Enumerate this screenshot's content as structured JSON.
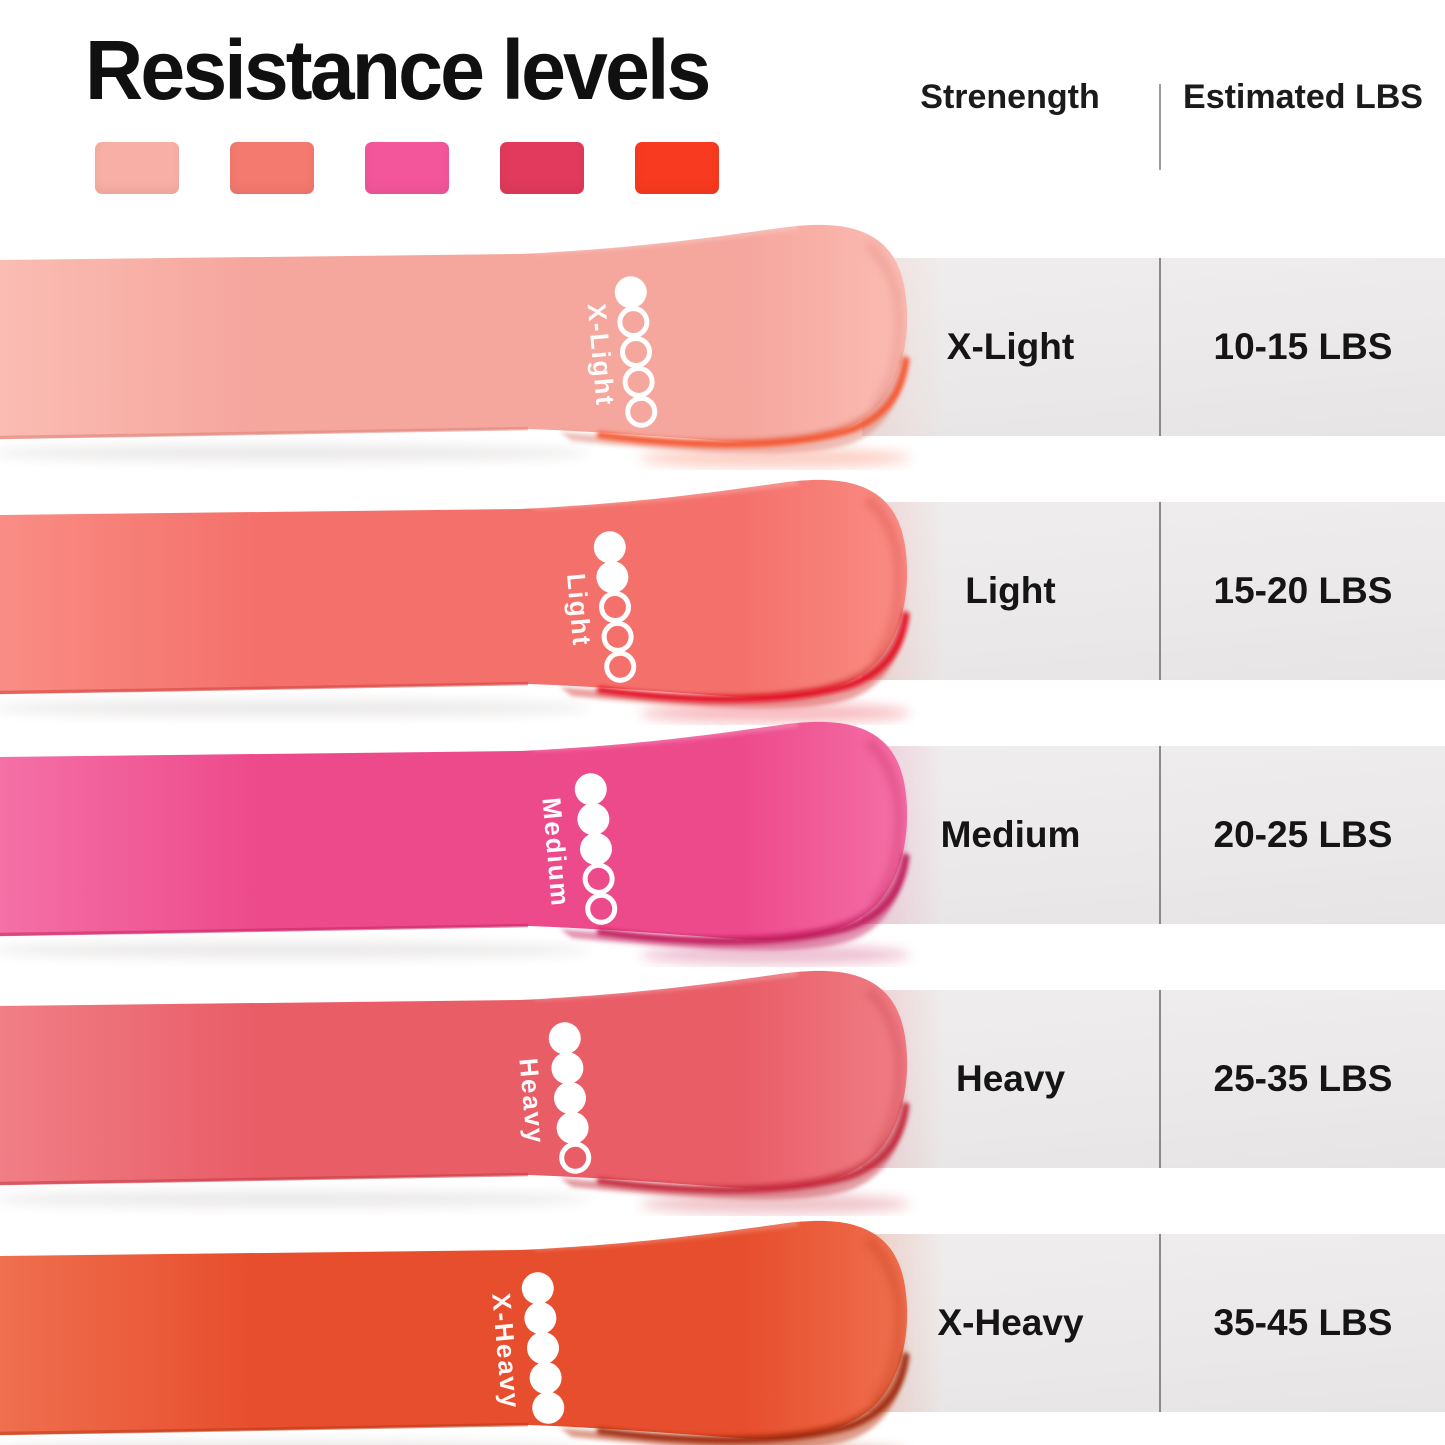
{
  "title": "Resistance levels",
  "legend_swatches": [
    {
      "name": "x-light",
      "color": "#F8AFA6"
    },
    {
      "name": "light",
      "color": "#F4796E"
    },
    {
      "name": "medium",
      "color": "#F4569B"
    },
    {
      "name": "heavy",
      "color": "#E13A5C"
    },
    {
      "name": "x-heavy",
      "color": "#F83A20"
    }
  ],
  "table": {
    "columns": [
      "Strenength",
      "Estimated LBS"
    ],
    "rows": [
      {
        "strength": "X-Light",
        "lbs": "10-15 LBS"
      },
      {
        "strength": "Light",
        "lbs": "15-20 LBS"
      },
      {
        "strength": "Medium",
        "lbs": "20-25 LBS"
      },
      {
        "strength": "Heavy",
        "lbs": "25-35 LBS"
      },
      {
        "strength": "X-Heavy",
        "lbs": "35-45 LBS"
      }
    ]
  },
  "bands": [
    {
      "label": "X-Light",
      "dots_filled": 1,
      "dots_total": 5,
      "color": "#F5A69D",
      "color_light": "#FBBCB3",
      "color_dark": "#DE8274",
      "rim": "#F6542E"
    },
    {
      "label": "Light",
      "dots_filled": 2,
      "dots_total": 5,
      "color": "#F4716B",
      "color_light": "#F98D85",
      "color_dark": "#D4423E",
      "rim": "#E40E21"
    },
    {
      "label": "Medium",
      "dots_filled": 3,
      "dots_total": 5,
      "color": "#ED4A8C",
      "color_light": "#F470A6",
      "color_dark": "#C62663",
      "rim": "#C11A5B"
    },
    {
      "label": "Heavy",
      "dots_filled": 4,
      "dots_total": 5,
      "color": "#E95D67",
      "color_light": "#F07E86",
      "color_dark": "#C63A46",
      "rim": "#C52B3E"
    },
    {
      "label": "X-Heavy",
      "dots_filled": 5,
      "dots_total": 5,
      "color": "#E74E2D",
      "color_light": "#EF6F4E",
      "color_dark": "#BC3A17",
      "rim": "#A02B10"
    }
  ]
}
